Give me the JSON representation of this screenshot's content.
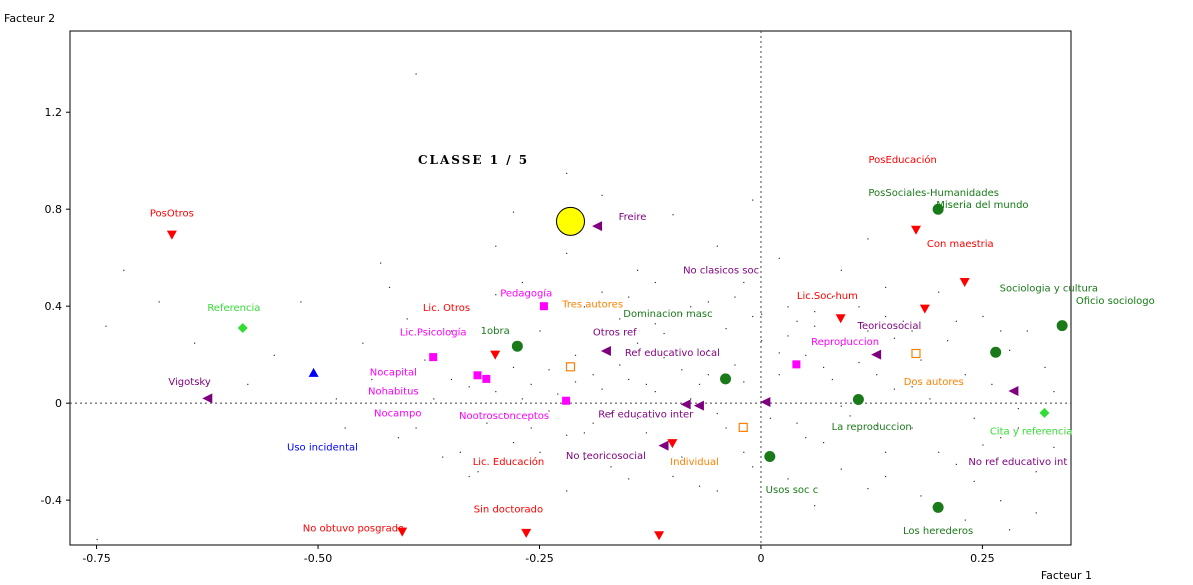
{
  "chart_data": {
    "type": "scatter",
    "title": "CLASSE 1 / 5",
    "xlabel": "Facteur 1",
    "ylabel": "Facteur 2",
    "xlim": [
      -0.78,
      0.35
    ],
    "ylim": [
      -0.585,
      1.535
    ],
    "x_ticks": [
      {
        "v": -0.75,
        "label": "-0.75"
      },
      {
        "v": -0.5,
        "label": "-0.50"
      },
      {
        "v": -0.25,
        "label": "-0.25"
      },
      {
        "v": 0,
        "label": "0"
      },
      {
        "v": 0.25,
        "label": "0.25"
      }
    ],
    "y_ticks": [
      {
        "v": 1.2,
        "label": "1.2"
      },
      {
        "v": 0.8,
        "label": "0.8"
      },
      {
        "v": 0.4,
        "label": "0.4"
      },
      {
        "v": 0,
        "label": "0"
      },
      {
        "v": -0.4,
        "label": "-0.4"
      }
    ],
    "grid": false,
    "reference_lines": {
      "x": 0,
      "y": 0,
      "style": "dotted"
    },
    "class_marker": {
      "x": -0.215,
      "y": 0.75,
      "color": "#ffff00"
    },
    "colors": {
      "red": "#ff0000",
      "green": "#1a7a1a",
      "darkgreen": "#117a11",
      "purple": "#7f007f",
      "magenta": "#ff00ff",
      "orange": "#ff8000",
      "blue": "#0000ff",
      "lime": "#33dd33"
    },
    "points": [
      {
        "label": "PosOtros",
        "x": -0.665,
        "y": 0.695,
        "marker": "tri-down",
        "color": "#ff0000",
        "lx": -0.665,
        "ly": 0.77
      },
      {
        "label": "Referencia",
        "x": -0.585,
        "y": 0.31,
        "marker": "diamond",
        "color": "#33dd33",
        "lx": -0.595,
        "ly": 0.38
      },
      {
        "label": "",
        "x": -0.505,
        "y": 0.125,
        "marker": "tri-up",
        "color": "#0000ff",
        "lx": 0,
        "ly": 0
      },
      {
        "label": "Vigotsky",
        "x": -0.625,
        "y": 0.02,
        "marker": "tri-left",
        "color": "#7f007f",
        "lx": -0.645,
        "ly": 0.075
      },
      {
        "label": "Uso incidental",
        "x": 0,
        "y": 0,
        "marker": "none",
        "color": "#0000ff",
        "lx": -0.495,
        "ly": -0.195
      },
      {
        "label": "Lic. Otros",
        "x": -0.3,
        "y": 0.2,
        "marker": "tri-down",
        "color": "#ff0000",
        "lx": -0.355,
        "ly": 0.38
      },
      {
        "label": "Lic.Psicología",
        "x": -0.37,
        "y": 0.19,
        "marker": "square",
        "color": "#ff00ff",
        "lx": -0.37,
        "ly": 0.28
      },
      {
        "label": "Nocapital",
        "x": -0.32,
        "y": 0.115,
        "marker": "square",
        "color": "#ff00ff",
        "lx": -0.415,
        "ly": 0.115
      },
      {
        "label": "Nohabitus",
        "x": -0.31,
        "y": 0.1,
        "marker": "square",
        "color": "#ff00ff",
        "lx": -0.415,
        "ly": 0.035
      },
      {
        "label": "Nocampo",
        "x": -0.22,
        "y": 0.01,
        "marker": "square",
        "color": "#ff00ff",
        "lx": -0.41,
        "ly": -0.055
      },
      {
        "label": "Pedagogía",
        "x": -0.245,
        "y": 0.4,
        "marker": "square",
        "color": "#ff00ff",
        "lx": -0.265,
        "ly": 0.44
      },
      {
        "label": "Reproduccion",
        "x": 0.04,
        "y": 0.16,
        "marker": "square",
        "color": "#ff00ff",
        "lx": 0.095,
        "ly": 0.24
      },
      {
        "label": "Nootrosconceptos",
        "x": 0,
        "y": 0,
        "marker": "none",
        "color": "#ff00ff",
        "lx": -0.29,
        "ly": -0.065
      },
      {
        "label": "1obra",
        "x": -0.275,
        "y": 0.235,
        "marker": "circle",
        "color": "#1a7a1a",
        "lx": -0.3,
        "ly": 0.285
      },
      {
        "label": "Tres autores",
        "x": -0.215,
        "y": 0.15,
        "marker": "open-square",
        "color": "#ff8000",
        "lx": -0.19,
        "ly": 0.395
      },
      {
        "label": "Dominacion masc",
        "x": -0.04,
        "y": 0.1,
        "marker": "circle",
        "color": "#1a7a1a",
        "lx": -0.105,
        "ly": 0.355
      },
      {
        "label": "No clasicos soc",
        "x": 0,
        "y": 0,
        "marker": "none",
        "color": "#7f007f",
        "lx": -0.045,
        "ly": 0.535
      },
      {
        "label": "Freire",
        "x": -0.185,
        "y": 0.73,
        "marker": "tri-left",
        "color": "#7f007f",
        "lx": -0.145,
        "ly": 0.755
      },
      {
        "label": "Otros ref",
        "x": -0.175,
        "y": 0.215,
        "marker": "tri-left",
        "color": "#7f007f",
        "lx": -0.165,
        "ly": 0.28
      },
      {
        "label": "Ref educativo local",
        "x": -0.07,
        "y": -0.01,
        "marker": "tri-left",
        "color": "#7f007f",
        "lx": -0.1,
        "ly": 0.195
      },
      {
        "label": "Ref educativo inter",
        "x": -0.085,
        "y": -0.005,
        "marker": "tri-left",
        "color": "#7f007f",
        "lx": -0.13,
        "ly": -0.06
      },
      {
        "label": "No teoricosocial",
        "x": -0.11,
        "y": -0.175,
        "marker": "tri-left",
        "color": "#7f007f",
        "lx": -0.175,
        "ly": -0.23
      },
      {
        "label": "Lic. Educación",
        "x": -0.1,
        "y": -0.165,
        "marker": "tri-down",
        "color": "#ff0000",
        "lx": -0.285,
        "ly": -0.255
      },
      {
        "label": "Individual",
        "x": -0.02,
        "y": -0.1,
        "marker": "open-square",
        "color": "#ff8000",
        "lx": -0.075,
        "ly": -0.255
      },
      {
        "label": "Sin doctorado",
        "x": -0.265,
        "y": -0.535,
        "marker": "tri-down",
        "color": "#ff0000",
        "lx": -0.285,
        "ly": -0.45
      },
      {
        "label": "No obtuvo posgrado",
        "x": -0.405,
        "y": -0.53,
        "marker": "tri-down",
        "color": "#ff0000",
        "lx": -0.46,
        "ly": -0.53
      },
      {
        "label": "",
        "x": -0.115,
        "y": -0.545,
        "marker": "tri-down",
        "color": "#ff0000",
        "lx": 0,
        "ly": 0
      },
      {
        "label": "",
        "x": 0.005,
        "y": 0.005,
        "marker": "tri-left",
        "color": "#7f007f",
        "lx": 0,
        "ly": 0
      },
      {
        "label": "Usos soc c",
        "x": 0.01,
        "y": -0.22,
        "marker": "circle",
        "color": "#1a7a1a",
        "lx": 0.035,
        "ly": -0.37
      },
      {
        "label": "La reproduccion",
        "x": 0.11,
        "y": 0.015,
        "marker": "circle",
        "color": "#1a7a1a",
        "lx": 0.125,
        "ly": -0.11
      },
      {
        "label": "Teoricosocial",
        "x": 0.13,
        "y": 0.2,
        "marker": "tri-left",
        "color": "#7f007f",
        "lx": 0.145,
        "ly": 0.305
      },
      {
        "label": "Lic.Soc-hum",
        "x": 0.09,
        "y": 0.35,
        "marker": "tri-down",
        "color": "#ff0000",
        "lx": 0.075,
        "ly": 0.43
      },
      {
        "label": "Dos autores",
        "x": 0.175,
        "y": 0.205,
        "marker": "open-square",
        "color": "#ff8000",
        "lx": 0.195,
        "ly": 0.075
      },
      {
        "label": "PosEducación",
        "x": 0.175,
        "y": 0.715,
        "marker": "tri-down",
        "color": "#ff0000",
        "lx": 0.16,
        "ly": 0.99
      },
      {
        "label": "PosSociales-Humanidades",
        "x": 0.2,
        "y": 0.8,
        "marker": "circle",
        "color": "#1a7a1a",
        "lx": 0.195,
        "ly": 0.855
      },
      {
        "label": "Miseria del mundo",
        "x": 0,
        "y": 0,
        "marker": "none",
        "color": "#117a11",
        "lx": 0.25,
        "ly": 0.805
      },
      {
        "label": "Con maestria",
        "x": 0.23,
        "y": 0.5,
        "marker": "tri-down",
        "color": "#ff0000",
        "lx": 0.225,
        "ly": 0.645
      },
      {
        "label": "",
        "x": 0.185,
        "y": 0.39,
        "marker": "tri-down",
        "color": "#ff0000",
        "lx": 0,
        "ly": 0
      },
      {
        "label": "Sociologia y cultura",
        "x": 0.34,
        "y": 0.32,
        "marker": "circle",
        "color": "#1a7a1a",
        "lx": 0.325,
        "ly": 0.46
      },
      {
        "label": "Oficio sociologo",
        "x": 0,
        "y": 0,
        "marker": "none",
        "color": "#117a11",
        "lx": 0.4,
        "ly": 0.41
      },
      {
        "label": "",
        "x": 0.265,
        "y": 0.21,
        "marker": "circle",
        "color": "#1a7a1a",
        "lx": 0,
        "ly": 0
      },
      {
        "label": "",
        "x": 0.285,
        "y": 0.05,
        "marker": "tri-left",
        "color": "#7f007f",
        "lx": 0,
        "ly": 0
      },
      {
        "label": "Cita y referencia",
        "x": 0.32,
        "y": -0.04,
        "marker": "diamond",
        "color": "#33dd33",
        "lx": 0.305,
        "ly": -0.13
      },
      {
        "label": "No ref educativo int",
        "x": 0,
        "y": 0,
        "marker": "none",
        "color": "#7f007f",
        "lx": 0.29,
        "ly": -0.255
      },
      {
        "label": "Los herederos",
        "x": 0.2,
        "y": -0.43,
        "marker": "circle",
        "color": "#1a7a1a",
        "lx": 0.2,
        "ly": -0.54
      }
    ],
    "noise_points": [
      [
        -0.72,
        0.55
      ],
      [
        -0.64,
        0.25
      ],
      [
        -0.58,
        0.08
      ],
      [
        -0.55,
        0.2
      ],
      [
        -0.48,
        0.02
      ],
      [
        -0.45,
        0.25
      ],
      [
        -0.42,
        0.48
      ],
      [
        -0.4,
        0.35
      ],
      [
        -0.41,
        -0.14
      ],
      [
        -0.39,
        -0.1
      ],
      [
        -0.37,
        0.02
      ],
      [
        -0.36,
        -0.22
      ],
      [
        -0.35,
        0.1
      ],
      [
        -0.34,
        -0.2
      ],
      [
        -0.33,
        0.07
      ],
      [
        -0.32,
        -0.28
      ],
      [
        -0.3,
        0.05
      ],
      [
        -0.29,
        -0.04
      ],
      [
        -0.28,
        0.15
      ],
      [
        -0.27,
        0.02
      ],
      [
        -0.26,
        -0.1
      ],
      [
        -0.25,
        0.3
      ],
      [
        -0.24,
        0.14
      ],
      [
        -0.23,
        0.04
      ],
      [
        -0.22,
        -0.13
      ],
      [
        -0.21,
        0.2
      ],
      [
        -0.2,
        -0.23
      ],
      [
        -0.19,
        0.12
      ],
      [
        -0.18,
        0.06
      ],
      [
        -0.17,
        -0.04
      ],
      [
        -0.16,
        0.35
      ],
      [
        -0.15,
        0.1
      ],
      [
        -0.14,
        0.25
      ],
      [
        -0.13,
        -0.12
      ],
      [
        -0.12,
        0.05
      ],
      [
        -0.11,
        0.29
      ],
      [
        -0.1,
        -0.3
      ],
      [
        -0.09,
        0.14
      ],
      [
        -0.08,
        0.4
      ],
      [
        -0.07,
        0.08
      ],
      [
        -0.06,
        0.22
      ],
      [
        -0.05,
        -0.04
      ],
      [
        -0.04,
        0.31
      ],
      [
        -0.03,
        0.16
      ],
      [
        -0.02,
        -0.2
      ],
      [
        -0.01,
        0.36
      ],
      [
        0.02,
        0.12
      ],
      [
        0.03,
        0.28
      ],
      [
        0.04,
        -0.08
      ],
      [
        0.05,
        0.2
      ],
      [
        0.06,
        0.32
      ],
      [
        0.07,
        -0.16
      ],
      [
        0.08,
        0.1
      ],
      [
        0.09,
        0.24
      ],
      [
        0.1,
        -0.05
      ],
      [
        0.12,
        0.3
      ],
      [
        0.13,
        0.12
      ],
      [
        0.14,
        -0.2
      ],
      [
        0.15,
        0.06
      ],
      [
        0.16,
        0.34
      ],
      [
        0.17,
        -0.1
      ],
      [
        0.18,
        0.18
      ],
      [
        0.19,
        0.02
      ],
      [
        0.21,
        0.26
      ],
      [
        0.22,
        -0.25
      ],
      [
        0.23,
        0.12
      ],
      [
        0.24,
        -0.06
      ],
      [
        0.25,
        0.36
      ],
      [
        0.26,
        0.08
      ],
      [
        0.27,
        -0.14
      ],
      [
        0.28,
        0.22
      ],
      [
        0.29,
        -0.02
      ],
      [
        0.3,
        0.3
      ],
      [
        0.31,
        -0.28
      ],
      [
        0.32,
        0.15
      ],
      [
        0.33,
        -0.18
      ],
      [
        0.23,
        -0.48
      ],
      [
        0.28,
        -0.52
      ],
      [
        0.12,
        -0.35
      ],
      [
        0.06,
        -0.42
      ],
      [
        -0.05,
        -0.36
      ],
      [
        -0.15,
        -0.31
      ],
      [
        -0.22,
        -0.36
      ],
      [
        -0.33,
        -0.3
      ],
      [
        -0.18,
        0.86
      ],
      [
        -0.14,
        0.55
      ],
      [
        -0.39,
        1.36
      ],
      [
        -0.28,
        0.79
      ],
      [
        -0.22,
        0.62
      ],
      [
        -0.1,
        0.78
      ],
      [
        -0.43,
        0.58
      ],
      [
        -0.52,
        0.42
      ],
      [
        -0.68,
        0.42
      ],
      [
        -0.74,
        0.32
      ],
      [
        -0.3,
        0.45
      ],
      [
        -0.27,
        0.5
      ],
      [
        -0.2,
        0.4
      ],
      [
        -0.18,
        0.46
      ],
      [
        -0.15,
        0.44
      ],
      [
        -0.12,
        0.5
      ],
      [
        -0.09,
        0.37
      ],
      [
        -0.06,
        0.42
      ],
      [
        -0.03,
        0.44
      ],
      [
        0.0,
        0.37
      ],
      [
        0.03,
        0.4
      ],
      [
        0.06,
        0.38
      ],
      [
        0.08,
        0.44
      ],
      [
        0.11,
        0.4
      ],
      [
        0.14,
        0.36
      ],
      [
        0.17,
        0.3
      ],
      [
        -0.26,
        0.08
      ],
      [
        -0.24,
        -0.03
      ],
      [
        -0.21,
        0.09
      ],
      [
        -0.19,
        -0.08
      ],
      [
        -0.16,
        0.16
      ],
      [
        -0.13,
        0.08
      ],
      [
        -0.11,
        0.19
      ],
      [
        -0.08,
        0.02
      ],
      [
        -0.06,
        0.12
      ],
      [
        -0.04,
        -0.1
      ],
      [
        -0.02,
        0.09
      ],
      [
        0.01,
        -0.06
      ],
      [
        0.02,
        0.21
      ],
      [
        0.05,
        -0.14
      ],
      [
        0.07,
        0.15
      ],
      [
        0.09,
        -0.01
      ],
      [
        0.11,
        0.17
      ],
      [
        0.13,
        -0.09
      ],
      [
        0.15,
        0.27
      ],
      [
        0.17,
        0.07
      ],
      [
        -0.31,
        -0.08
      ],
      [
        -0.28,
        -0.16
      ],
      [
        -0.25,
        -0.2
      ],
      [
        -0.2,
        -0.12
      ],
      [
        -0.17,
        -0.26
      ],
      [
        -0.14,
        -0.06
      ],
      [
        -0.09,
        -0.22
      ],
      [
        -0.07,
        -0.34
      ],
      [
        -0.01,
        -0.26
      ],
      [
        0.03,
        -0.31
      ],
      [
        0.09,
        -0.27
      ],
      [
        0.14,
        -0.3
      ],
      [
        0.18,
        -0.38
      ],
      [
        0.24,
        -0.32
      ],
      [
        0.27,
        -0.4
      ],
      [
        0.31,
        -0.45
      ],
      [
        0.2,
        -0.2
      ],
      [
        0.25,
        -0.17
      ],
      [
        0.29,
        -0.1
      ],
      [
        0.33,
        0.05
      ],
      [
        -0.75,
        -0.56
      ],
      [
        -0.47,
        -0.1
      ],
      [
        -0.44,
        0.1
      ],
      [
        -0.38,
        0.18
      ],
      [
        -0.35,
        0.3
      ],
      [
        -0.12,
        0.33
      ],
      [
        0.0,
        0.26
      ],
      [
        0.04,
        0.34
      ],
      [
        0.22,
        0.34
      ],
      [
        0.27,
        0.3
      ],
      [
        -0.01,
        0.84
      ],
      [
        0.02,
        0.6
      ],
      [
        -0.05,
        0.65
      ],
      [
        -0.22,
        0.95
      ],
      [
        -0.3,
        0.65
      ],
      [
        0.12,
        0.68
      ],
      [
        0.09,
        0.55
      ],
      [
        -0.02,
        0.5
      ],
      [
        0.14,
        0.48
      ],
      [
        0.2,
        0.46
      ]
    ]
  }
}
